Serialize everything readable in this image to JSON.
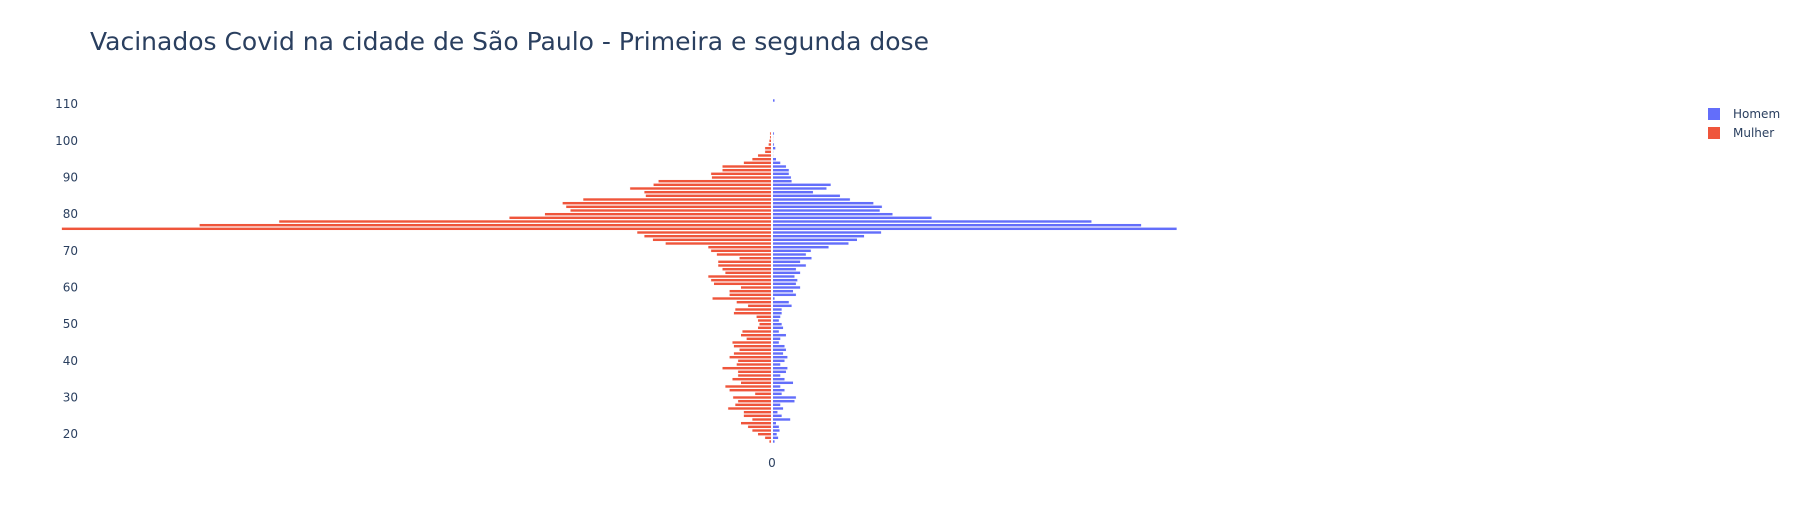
{
  "chart_data": {
    "type": "bar",
    "orientation": "horizontal",
    "barmode": "relative",
    "title": "Vacinados Covid na cidade de São Paulo - Primeira e segunda dose",
    "xlabel": "",
    "ylabel": "",
    "y": [
      18,
      19,
      20,
      21,
      22,
      23,
      24,
      25,
      26,
      27,
      28,
      29,
      30,
      31,
      32,
      33,
      34,
      35,
      36,
      37,
      38,
      39,
      40,
      41,
      42,
      43,
      44,
      45,
      46,
      47,
      48,
      49,
      50,
      51,
      52,
      53,
      54,
      55,
      56,
      57,
      58,
      59,
      60,
      61,
      62,
      63,
      64,
      65,
      66,
      67,
      68,
      69,
      70,
      71,
      72,
      73,
      74,
      75,
      76,
      77,
      78,
      79,
      80,
      81,
      82,
      83,
      84,
      85,
      86,
      87,
      88,
      89,
      90,
      91,
      92,
      93,
      94,
      95,
      96,
      97,
      98,
      99,
      100,
      101,
      102,
      103,
      104,
      105,
      106,
      107,
      108,
      109,
      110,
      111
    ],
    "yticks": [
      20,
      30,
      40,
      50,
      60,
      70,
      80,
      90,
      100,
      110
    ],
    "xticks": [
      0
    ],
    "xtick_labels": [
      "0"
    ],
    "xlim": [
      -960,
      1250
    ],
    "ylim": [
      16.5,
      112.5
    ],
    "grid": false,
    "legend_position": "top-right",
    "series": [
      {
        "name": "Homem",
        "color": "#636efa",
        "values": [
          4,
          9,
          7,
          11,
          10,
          6,
          26,
          14,
          8,
          16,
          12,
          32,
          34,
          14,
          18,
          12,
          30,
          18,
          12,
          20,
          22,
          12,
          18,
          22,
          16,
          20,
          18,
          10,
          12,
          20,
          10,
          16,
          14,
          10,
          12,
          14,
          14,
          28,
          24,
          4,
          34,
          30,
          40,
          34,
          36,
          32,
          40,
          34,
          48,
          40,
          56,
          48,
          55,
          80,
          108,
          120,
          130,
          154,
          570,
          520,
          450,
          225,
          170,
          152,
          155,
          143,
          110,
          96,
          58,
          77,
          83,
          28,
          27,
          24,
          24,
          20,
          12,
          6,
          2,
          2,
          5,
          3,
          2,
          2,
          3,
          0,
          0,
          0,
          0,
          0,
          0,
          0,
          0,
          4
        ]
      },
      {
        "name": "Mulher",
        "color": "#ef553b",
        "values": [
          -4,
          -10,
          -20,
          -28,
          -34,
          -44,
          -28,
          -40,
          -40,
          -62,
          -52,
          -48,
          -55,
          -24,
          -60,
          -66,
          -44,
          -56,
          -48,
          -48,
          -70,
          -50,
          -48,
          -60,
          -54,
          -46,
          -54,
          -56,
          -36,
          -44,
          -42,
          -20,
          -18,
          -20,
          -22,
          -54,
          -52,
          -34,
          -50,
          -84,
          -60,
          -60,
          -44,
          -82,
          -86,
          -90,
          -66,
          -70,
          -76,
          -76,
          -46,
          -78,
          -86,
          -90,
          -150,
          -168,
          -180,
          -190,
          -1000,
          -806,
          -694,
          -370,
          -320,
          -284,
          -290,
          -295,
          -266,
          -178,
          -180,
          -200,
          -167,
          -160,
          -85,
          -86,
          -70,
          -70,
          -40,
          -28,
          -20,
          -10,
          -10,
          -5,
          -4,
          -3,
          -3,
          0,
          0,
          0,
          0,
          0,
          0,
          0,
          0,
          0
        ]
      }
    ]
  }
}
